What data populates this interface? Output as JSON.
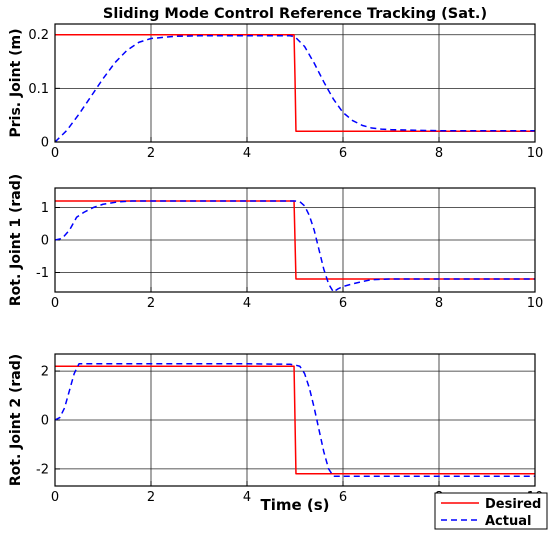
{
  "chart_data": {
    "type": "line",
    "title": "Sliding Mode Control Reference Tracking (Sat.)",
    "xlabel": "Time (s)",
    "xlim": [
      0,
      10
    ],
    "xticks": [
      0,
      2,
      4,
      6,
      8,
      10
    ],
    "grid": true,
    "legend": {
      "placement": "bottom-right",
      "entries": [
        "Desired",
        "Actual"
      ]
    },
    "colors": {
      "Desired": "#ff0000",
      "Actual": "#0000ff"
    },
    "subplots": [
      {
        "ylabel": "Pris. Joint (m)",
        "ylim": [
          0,
          0.22
        ],
        "yticks": [
          0,
          0.1,
          0.2
        ],
        "ytick_labels": [
          "0",
          "0.1",
          "0.2"
        ],
        "series": [
          {
            "name": "Desired",
            "style": "solid",
            "x": [
              0,
              4.98,
              5.0,
              5.02,
              10
            ],
            "y": [
              0.2,
              0.2,
              0.12,
              0.02,
              0.02
            ]
          },
          {
            "name": "Actual",
            "style": "dashed",
            "x": [
              0,
              0.25,
              0.5,
              0.75,
              1.0,
              1.25,
              1.5,
              1.75,
              2.0,
              2.5,
              3.0,
              4.0,
              4.9,
              5.0,
              5.2,
              5.4,
              5.6,
              5.8,
              6.0,
              6.2,
              6.4,
              6.6,
              6.8,
              7.0,
              7.5,
              8.0,
              9.0,
              10.0
            ],
            "y": [
              0.0,
              0.022,
              0.052,
              0.085,
              0.118,
              0.148,
              0.171,
              0.186,
              0.193,
              0.197,
              0.198,
              0.198,
              0.198,
              0.196,
              0.178,
              0.147,
              0.112,
              0.08,
              0.055,
              0.04,
              0.031,
              0.026,
              0.024,
              0.023,
              0.022,
              0.021,
              0.021,
              0.021
            ]
          }
        ]
      },
      {
        "ylabel": "Rot. Joint 1 (rad)",
        "ylim": [
          -1.6,
          1.6
        ],
        "yticks": [
          -1,
          0,
          1
        ],
        "ytick_labels": [
          "-1",
          "0",
          "1"
        ],
        "series": [
          {
            "name": "Desired",
            "style": "solid",
            "x": [
              0,
              4.98,
              5.0,
              5.02,
              10
            ],
            "y": [
              1.2,
              1.2,
              0.0,
              -1.2,
              -1.2
            ]
          },
          {
            "name": "Actual",
            "style": "dashed",
            "x": [
              0,
              0.15,
              0.3,
              0.45,
              0.6,
              0.8,
              1.0,
              1.3,
              1.6,
              2.0,
              3.0,
              4.0,
              5.0,
              5.1,
              5.2,
              5.3,
              5.4,
              5.5,
              5.6,
              5.7,
              5.8,
              5.9,
              6.0,
              6.2,
              6.4,
              6.6,
              7.0,
              8.0,
              9.0,
              10.0
            ],
            "y": [
              0.0,
              0.05,
              0.3,
              0.7,
              0.85,
              1.0,
              1.1,
              1.17,
              1.2,
              1.2,
              1.2,
              1.2,
              1.2,
              1.18,
              1.05,
              0.75,
              0.3,
              -0.3,
              -0.9,
              -1.35,
              -1.6,
              -1.5,
              -1.43,
              -1.35,
              -1.28,
              -1.22,
              -1.2,
              -1.2,
              -1.2,
              -1.2
            ]
          }
        ]
      },
      {
        "ylabel": "Rot. Joint 2 (rad)",
        "ylim": [
          -2.7,
          2.7
        ],
        "yticks": [
          -2,
          0,
          2
        ],
        "ytick_labels": [
          "-2",
          "0",
          "2"
        ],
        "series": [
          {
            "name": "Desired",
            "style": "solid",
            "x": [
              0,
              4.98,
              5.0,
              5.02,
              10
            ],
            "y": [
              2.2,
              2.2,
              0.0,
              -2.2,
              -2.2
            ]
          },
          {
            "name": "Actual",
            "style": "dashed",
            "x": [
              0,
              0.1,
              0.2,
              0.3,
              0.4,
              0.5,
              1.0,
              2.0,
              3.0,
              4.0,
              4.9,
              5.0,
              5.1,
              5.2,
              5.3,
              5.4,
              5.5,
              5.6,
              5.7,
              5.8,
              5.9,
              6.0,
              7.0,
              8.0,
              9.0,
              10.0
            ],
            "y": [
              0.0,
              0.1,
              0.5,
              1.2,
              1.9,
              2.3,
              2.3,
              2.3,
              2.3,
              2.3,
              2.28,
              2.25,
              2.2,
              1.9,
              1.3,
              0.5,
              -0.4,
              -1.3,
              -2.0,
              -2.3,
              -2.3,
              -2.3,
              -2.3,
              -2.3,
              -2.3,
              -2.3
            ]
          }
        ]
      }
    ]
  }
}
